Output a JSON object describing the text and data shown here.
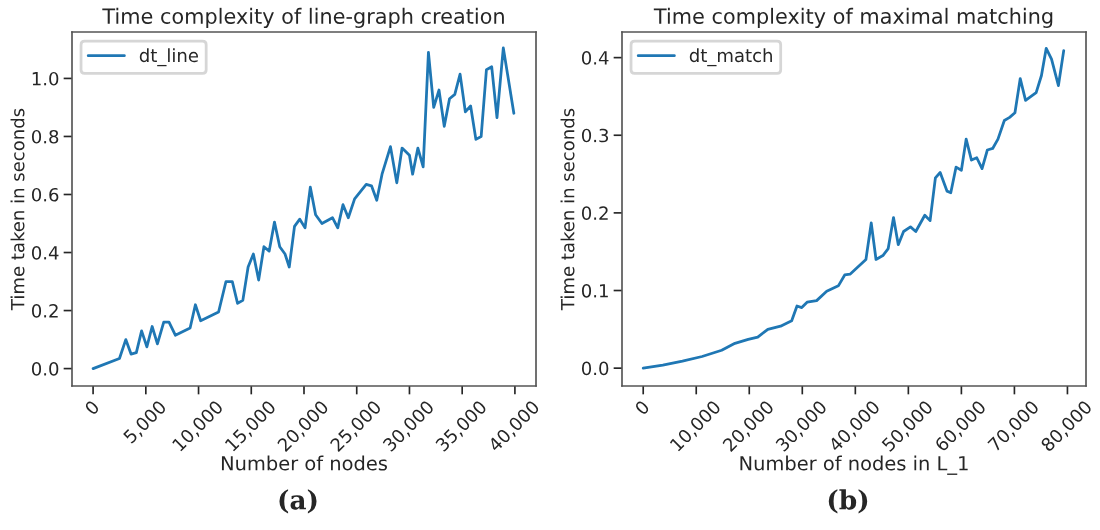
{
  "chart_data": [
    {
      "type": "line",
      "title": "Time complexity of line-graph creation",
      "xlabel": "Number of nodes",
      "ylabel": "Time taken in seconds",
      "annotations": [
        "(a)"
      ],
      "legend": "top left",
      "grid": false,
      "xlim": [
        -2000,
        42000
      ],
      "xticks": [
        {
          "value": 0,
          "label": "0"
        },
        {
          "value": 5000,
          "label": "5,000"
        },
        {
          "value": 10000,
          "label": "10,000"
        },
        {
          "value": 15000,
          "label": "15,000"
        },
        {
          "value": 20000,
          "label": "20,000"
        },
        {
          "value": 25000,
          "label": "25,000"
        },
        {
          "value": 30000,
          "label": "30,000"
        },
        {
          "value": 35000,
          "label": "35,000"
        },
        {
          "value": 40000,
          "label": "40,000"
        }
      ],
      "ylim": [
        -0.06,
        1.16
      ],
      "yticks": [
        {
          "value": 0,
          "label": "0.0"
        },
        {
          "value": 0.2,
          "label": "0.2"
        },
        {
          "value": 0.4,
          "label": "0.4"
        },
        {
          "value": 0.6,
          "label": "0.6"
        },
        {
          "value": 0.8,
          "label": "0.8"
        },
        {
          "value": 1.0,
          "label": "1.0"
        }
      ],
      "series": [
        {
          "name": "dt_line",
          "color": "#1f77b4",
          "x": [
            0,
            2500,
            3100,
            3600,
            4100,
            4600,
            5100,
            5600,
            6100,
            6700,
            7200,
            7800,
            9200,
            9700,
            10200,
            11900,
            12600,
            13200,
            13700,
            14200,
            14700,
            15200,
            15700,
            16200,
            16700,
            17200,
            17700,
            18200,
            18600,
            19100,
            19600,
            20100,
            20600,
            21100,
            21700,
            22700,
            23200,
            23700,
            24200,
            24800,
            25900,
            26400,
            26900,
            27400,
            28200,
            28800,
            29300,
            30000,
            30300,
            30800,
            31300,
            31800,
            32300,
            32800,
            33300,
            33800,
            34300,
            34800,
            35300,
            35800,
            36300,
            36800,
            37300,
            37800,
            38300,
            38900,
            39900
          ],
          "values": [
            0,
            0.035,
            0.1,
            0.05,
            0.055,
            0.13,
            0.075,
            0.145,
            0.085,
            0.16,
            0.16,
            0.115,
            0.14,
            0.22,
            0.165,
            0.195,
            0.3,
            0.3,
            0.225,
            0.235,
            0.35,
            0.395,
            0.305,
            0.42,
            0.405,
            0.505,
            0.42,
            0.395,
            0.35,
            0.49,
            0.515,
            0.485,
            0.625,
            0.53,
            0.5,
            0.52,
            0.485,
            0.565,
            0.52,
            0.585,
            0.635,
            0.63,
            0.58,
            0.67,
            0.765,
            0.64,
            0.76,
            0.735,
            0.67,
            0.76,
            0.695,
            1.09,
            0.9,
            0.96,
            0.835,
            0.93,
            0.945,
            1.015,
            0.885,
            0.905,
            0.79,
            0.8,
            1.03,
            1.04,
            0.865,
            1.105,
            0.88
          ]
        }
      ]
    },
    {
      "type": "line",
      "title": "Time complexity of maximal matching",
      "xlabel": "Number of nodes in L_1",
      "ylabel": "Time taken in seconds",
      "annotations": [
        "(b)"
      ],
      "legend": "top left",
      "grid": false,
      "xlim": [
        -4000,
        83500
      ],
      "xticks": [
        {
          "value": 0,
          "label": "0"
        },
        {
          "value": 10000,
          "label": "10,000"
        },
        {
          "value": 20000,
          "label": "20,000"
        },
        {
          "value": 30000,
          "label": "30,000"
        },
        {
          "value": 40000,
          "label": "40,000"
        },
        {
          "value": 50000,
          "label": "50,000"
        },
        {
          "value": 60000,
          "label": "60,000"
        },
        {
          "value": 70000,
          "label": "70,000"
        },
        {
          "value": 80000,
          "label": "80,000"
        }
      ],
      "ylim": [
        -0.023,
        0.433
      ],
      "yticks": [
        {
          "value": 0,
          "label": "0.0"
        },
        {
          "value": 0.1,
          "label": "0.1"
        },
        {
          "value": 0.2,
          "label": "0.2"
        },
        {
          "value": 0.3,
          "label": "0.3"
        },
        {
          "value": 0.4,
          "label": "0.4"
        }
      ],
      "series": [
        {
          "name": "dt_match",
          "color": "#1f77b4",
          "x": [
            0,
            3700,
            7400,
            11100,
            14800,
            17300,
            19800,
            21600,
            23500,
            25900,
            28000,
            29000,
            29900,
            30900,
            32700,
            34600,
            36800,
            38000,
            39000,
            42000,
            43000,
            43900,
            45200,
            46200,
            47200,
            48100,
            49100,
            50400,
            51400,
            53100,
            54100,
            55100,
            56000,
            57300,
            58000,
            59000,
            60000,
            60900,
            61900,
            62900,
            63900,
            64900,
            65900,
            66900,
            68100,
            69100,
            70100,
            71100,
            72100,
            74100,
            75100,
            76000,
            77000,
            78300,
            79300
          ],
          "values": [
            0,
            0.004,
            0.009,
            0.015,
            0.023,
            0.032,
            0.037,
            0.04,
            0.05,
            0.054,
            0.061,
            0.08,
            0.078,
            0.085,
            0.087,
            0.099,
            0.106,
            0.12,
            0.121,
            0.14,
            0.187,
            0.14,
            0.145,
            0.154,
            0.194,
            0.159,
            0.176,
            0.182,
            0.176,
            0.197,
            0.19,
            0.245,
            0.252,
            0.228,
            0.226,
            0.259,
            0.255,
            0.295,
            0.268,
            0.271,
            0.257,
            0.281,
            0.283,
            0.295,
            0.319,
            0.323,
            0.329,
            0.373,
            0.345,
            0.355,
            0.377,
            0.412,
            0.398,
            0.364,
            0.409
          ]
        }
      ]
    }
  ]
}
